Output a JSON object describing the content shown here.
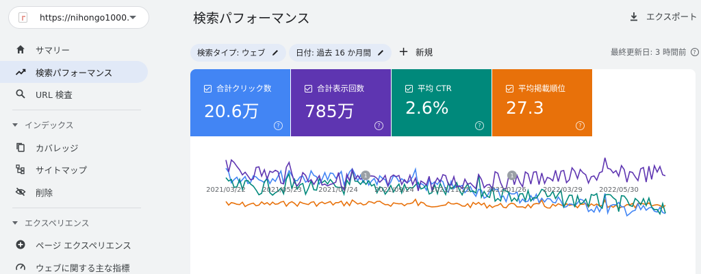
{
  "property": {
    "label": "https://nihongo1000..."
  },
  "nav": {
    "summary": "サマリー",
    "performance": "検索パフォーマンス",
    "url_inspect": "URL 検査",
    "section_index": "インデックス",
    "coverage": "カバレッジ",
    "sitemap": "サイトマップ",
    "removals": "削除",
    "section_experience": "エクスペリエンス",
    "page_experience": "ページ エクスペリエンス",
    "web_vitals": "ウェブに関する主な指標"
  },
  "header": {
    "title": "検索パフォーマンス",
    "export": "エクスポート"
  },
  "filters": {
    "search_type": "検索タイプ: ウェブ",
    "date": "日付: 過去 16 か月間",
    "new": "新規",
    "updated": "最終更新日: 3 時間前"
  },
  "metrics": [
    {
      "label": "合計クリック数",
      "value": "20.6万",
      "color": "#4285f4"
    },
    {
      "label": "合計表示回数",
      "value": "785万",
      "color": "#5e35b1"
    },
    {
      "label": "平均 CTR",
      "value": "2.6%",
      "color": "#00897b"
    },
    {
      "label": "平均掲載順位",
      "value": "27.3",
      "color": "#e8710a"
    }
  ],
  "chart": {
    "x_ticks": [
      "2021/03/22",
      "2021/05/23",
      "2021/07/24",
      "2021/09/24",
      "2021/11/25",
      "2022/01/26",
      "2022/03/29",
      "2022/05/30"
    ],
    "annotations": [
      "1",
      "1"
    ]
  }
}
